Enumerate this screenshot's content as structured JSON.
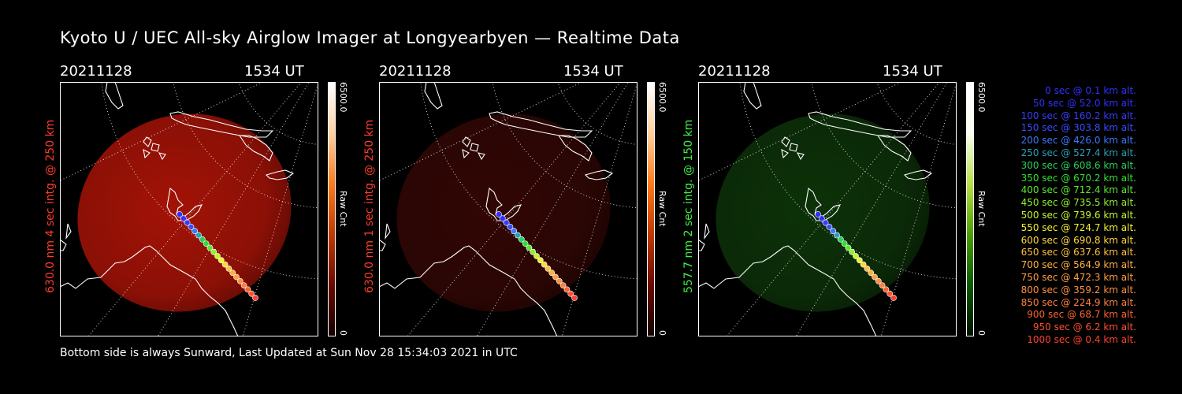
{
  "title": "Kyoto U / UEC All-sky Airglow Imager at Longyearbyen — Realtime Data",
  "footer": "Bottom side is always Sunward, Last Updated at Sun Nov 28 15:34:03 2021 in UTC",
  "panels": [
    {
      "date": "20211128",
      "time": "1534 UT",
      "side_label": "630.0 nm 4 sec intg. @ 250 km",
      "side_color": "#ff3b2a",
      "cbar_max": "6500.0",
      "cbar_min": "0",
      "cbar_unit": "Raw Cnt",
      "glow": "#c01608",
      "glow_opacity": 0.85
    },
    {
      "date": "20211128",
      "time": "1534 UT",
      "side_label": "630.0 nm 1 sec intg. @ 250 km",
      "side_color": "#ff3b2a",
      "cbar_max": "6500.0",
      "cbar_min": "0",
      "cbar_unit": "Raw Cnt",
      "glow": "#3a0805",
      "glow_opacity": 0.85
    },
    {
      "date": "20211128",
      "time": "1534 UT",
      "side_label": "557.7 nm 2 sec intg. @ 150 km",
      "side_color": "#44ee44",
      "cbar_max": "6500.0",
      "cbar_min": "0",
      "cbar_unit": "Raw Cnt",
      "glow": "#0f3a0a",
      "glow_opacity": 0.85
    }
  ],
  "legend": [
    {
      "text": "0 sec @   0.1 km alt.",
      "color": "#3030ff"
    },
    {
      "text": "50 sec @  52.0 km alt.",
      "color": "#3030ff"
    },
    {
      "text": "100 sec @ 160.2 km alt.",
      "color": "#3a3aff"
    },
    {
      "text": "150 sec @ 303.8 km alt.",
      "color": "#3a4cff"
    },
    {
      "text": "200 sec @ 426.0 km alt.",
      "color": "#3c78ff"
    },
    {
      "text": "250 sec @ 527.4 km alt.",
      "color": "#2aa0b4"
    },
    {
      "text": "300 sec @ 608.6 km alt.",
      "color": "#28d060"
    },
    {
      "text": "350 sec @ 670.2 km alt.",
      "color": "#30e030"
    },
    {
      "text": "400 sec @ 712.4 km alt.",
      "color": "#5ae830"
    },
    {
      "text": "450 sec @ 735.5 km alt.",
      "color": "#90f030"
    },
    {
      "text": "500 sec @ 739.6 km alt.",
      "color": "#c4f430"
    },
    {
      "text": "550 sec @ 724.7 km alt.",
      "color": "#f0f030"
    },
    {
      "text": "600 sec @ 690.8 km alt.",
      "color": "#ffd840"
    },
    {
      "text": "650 sec @ 637.6 km alt.",
      "color": "#ffc040"
    },
    {
      "text": "700 sec @ 564.9 km alt.",
      "color": "#ffb040"
    },
    {
      "text": "750 sec @ 472.3 km alt.",
      "color": "#ffa040"
    },
    {
      "text": "800 sec @ 359.2 km alt.",
      "color": "#ff9040"
    },
    {
      "text": "850 sec @ 224.9 km alt.",
      "color": "#ff8040"
    },
    {
      "text": "900 sec @  68.7 km alt.",
      "color": "#ff6030"
    },
    {
      "text": "950 sec @   6.2 km alt.",
      "color": "#ff5030"
    },
    {
      "text": "1000 sec @   0.4 km alt.",
      "color": "#ff4030"
    }
  ]
}
